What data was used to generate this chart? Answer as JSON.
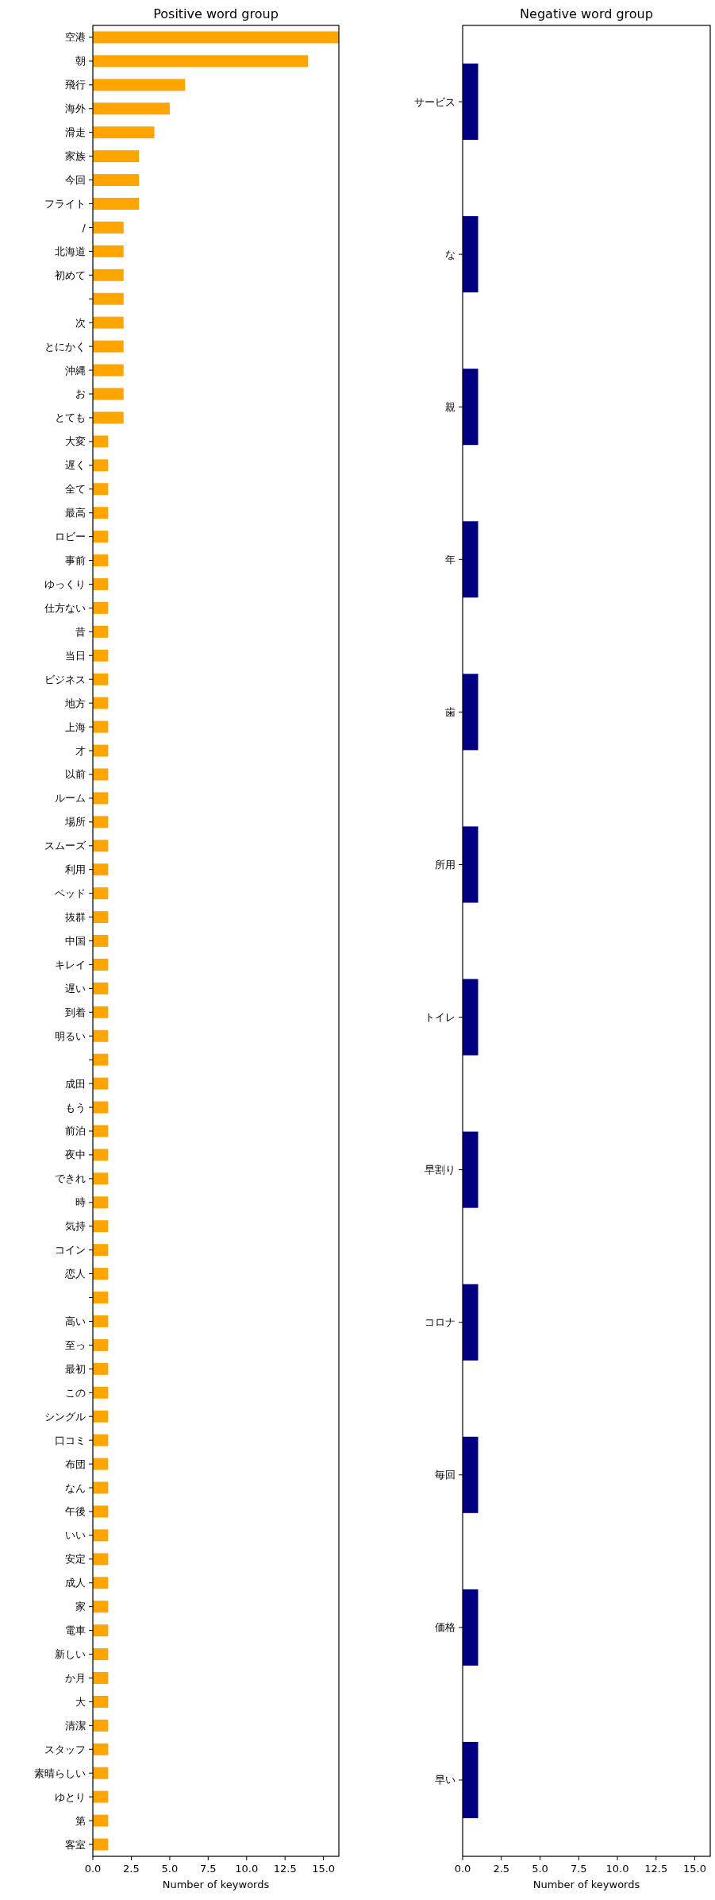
{
  "chart_data": [
    {
      "type": "bar",
      "orientation": "horizontal",
      "title": "Positive word group",
      "xlabel": "Number of keywords",
      "color": "#ffa500",
      "xlim": [
        0,
        16
      ],
      "xticks": [
        {
          "value": 0,
          "label": "0.0"
        },
        {
          "value": 2.5,
          "label": "2.5"
        },
        {
          "value": 5,
          "label": "5.0"
        },
        {
          "value": 7.5,
          "label": "7.5"
        },
        {
          "value": 10,
          "label": "10.0"
        },
        {
          "value": 12.5,
          "label": "12.5"
        },
        {
          "value": 15,
          "label": "15.0"
        }
      ],
      "grid": false,
      "categories": [
        "空港",
        "朝",
        "飛行",
        "海外",
        "滑走",
        "家族",
        "今回",
        "フライト",
        "/",
        "北海道",
        "初めて",
        null,
        "次",
        "とにかく",
        "沖縄",
        "お",
        "とても",
        "大変",
        "遅く",
        "全て",
        "最高",
        "ロビー",
        "事前",
        "ゆっくり",
        "仕方ない",
        "昔",
        "当日",
        "ビジネス",
        "地方",
        "上海",
        "才",
        "以前",
        "ルーム",
        "場所",
        "スムーズ",
        "利用",
        "ベッド",
        "抜群",
        "中国",
        "キレイ",
        "遅い",
        "到着",
        "明るい",
        null,
        "成田",
        "もう",
        "前泊",
        "夜中",
        "できれ",
        "時",
        "気持",
        "コイン",
        "恋人",
        null,
        "高い",
        "至っ",
        "最初",
        "この",
        "シングル",
        "口コミ",
        "布団",
        "なん",
        "午後",
        "いい",
        "安定",
        "成人",
        "家",
        "電車",
        "新しい",
        "か月",
        "大",
        "清潔",
        "スタッフ",
        "素晴らしい",
        "ゆとり",
        "第",
        "客室"
      ],
      "values": [
        16,
        14,
        6,
        5,
        4,
        3,
        3,
        3,
        2,
        2,
        2,
        2,
        2,
        2,
        2,
        2,
        2,
        1,
        1,
        1,
        1,
        1,
        1,
        1,
        1,
        1,
        1,
        1,
        1,
        1,
        1,
        1,
        1,
        1,
        1,
        1,
        1,
        1,
        1,
        1,
        1,
        1,
        1,
        1,
        1,
        1,
        1,
        1,
        1,
        1,
        1,
        1,
        1,
        1,
        1,
        1,
        1,
        1,
        1,
        1,
        1,
        1,
        1,
        1,
        1,
        1,
        1,
        1,
        1,
        1,
        1,
        1,
        1,
        1,
        1,
        1,
        1
      ]
    },
    {
      "type": "bar",
      "orientation": "horizontal",
      "title": "Negative word group",
      "xlabel": "Number of keywords",
      "color": "#000080",
      "xlim": [
        0,
        16
      ],
      "xticks": [
        {
          "value": 0,
          "label": "0.0"
        },
        {
          "value": 2.5,
          "label": "2.5"
        },
        {
          "value": 5,
          "label": "5.0"
        },
        {
          "value": 7.5,
          "label": "7.5"
        },
        {
          "value": 10,
          "label": "10.0"
        },
        {
          "value": 12.5,
          "label": "12.5"
        },
        {
          "value": 15,
          "label": "15.0"
        }
      ],
      "grid": false,
      "categories": [
        "サービス",
        "な",
        "親",
        "年",
        "歯",
        "所用",
        "トイレ",
        "早割り",
        "コロナ",
        "毎回",
        "価格",
        "早い"
      ],
      "values": [
        1,
        1,
        1,
        1,
        1,
        1,
        1,
        1,
        1,
        1,
        1,
        1
      ]
    }
  ]
}
